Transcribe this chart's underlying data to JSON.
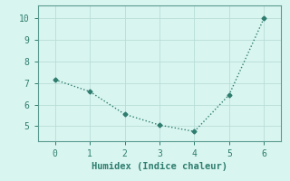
{
  "x": [
    0,
    1,
    2,
    3,
    4,
    5,
    6
  ],
  "y": [
    7.15,
    6.6,
    5.55,
    5.05,
    4.75,
    6.45,
    10.0
  ],
  "line_color": "#2e7d6e",
  "marker": "D",
  "marker_size": 2.5,
  "line_width": 1.0,
  "linestyle": ":",
  "xlabel": "Humidex (Indice chaleur)",
  "xlim": [
    -0.5,
    6.5
  ],
  "ylim": [
    4.3,
    10.6
  ],
  "yticks": [
    5,
    6,
    7,
    8,
    9,
    10
  ],
  "xticks": [
    0,
    1,
    2,
    3,
    4,
    5,
    6
  ],
  "bg_color": "#d9f5f0",
  "grid_color": "#b8ddd8",
  "axis_color": "#5a9a90",
  "tick_color": "#2e7d6e",
  "label_color": "#2e7d6e",
  "xlabel_fontsize": 7.5,
  "tick_fontsize": 7,
  "font_family": "monospace"
}
